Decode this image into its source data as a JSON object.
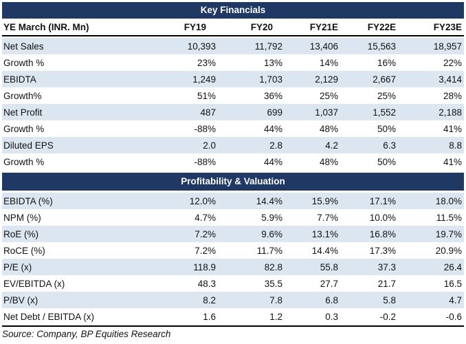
{
  "page": {
    "source_note": "Source: Company, BP Equities Research"
  },
  "table": {
    "section1_title": "Key Financials",
    "section2_title": "Profitability & Valuation",
    "columns": [
      "YE March (INR. Mn)",
      "FY19",
      "FY20",
      "FY21E",
      "FY22E",
      "FY23E"
    ],
    "section1_rows": [
      {
        "label": "Net Sales",
        "values": [
          "10,393",
          "11,792",
          "13,406",
          "15,563",
          "18,957"
        ]
      },
      {
        "label": "Growth %",
        "values": [
          "23%",
          "13%",
          "14%",
          "16%",
          "22%"
        ]
      },
      {
        "label": "EBIDTA",
        "values": [
          "1,249",
          "1,703",
          "2,129",
          "2,667",
          "3,414"
        ]
      },
      {
        "label": "Growth%",
        "values": [
          "51%",
          "36%",
          "25%",
          "25%",
          "28%"
        ]
      },
      {
        "label": "Net Profit",
        "values": [
          "487",
          "699",
          "1,037",
          "1,552",
          "2,188"
        ]
      },
      {
        "label": "Growth %",
        "values": [
          "-88%",
          "44%",
          "48%",
          "50%",
          "41%"
        ]
      },
      {
        "label": "Diluted EPS",
        "values": [
          "2.0",
          "2.8",
          "4.2",
          "6.3",
          "8.8"
        ]
      },
      {
        "label": "Growth %",
        "values": [
          "-88%",
          "44%",
          "48%",
          "50%",
          "41%"
        ]
      }
    ],
    "section2_rows": [
      {
        "label": "EBIDTA (%)",
        "values": [
          "12.0%",
          "14.4%",
          "15.9%",
          "17.1%",
          "18.0%"
        ]
      },
      {
        "label": "NPM (%)",
        "values": [
          "4.7%",
          "5.9%",
          "7.7%",
          "10.0%",
          "11.5%"
        ]
      },
      {
        "label": "RoE (%)",
        "values": [
          "7.2%",
          "9.6%",
          "13.1%",
          "16.8%",
          "19.7%"
        ]
      },
      {
        "label": "RoCE (%)",
        "values": [
          "7.2%",
          "11.7%",
          "14.4%",
          "17.3%",
          "20.9%"
        ]
      },
      {
        "label": "P/E (x)",
        "values": [
          "118.9",
          "82.8",
          "55.8",
          "37.3",
          "26.4"
        ]
      },
      {
        "label": "EV/EBITDA (x)",
        "values": [
          "48.3",
          "35.5",
          "27.7",
          "21.7",
          "16.5"
        ]
      },
      {
        "label": "P/BV (x)",
        "values": [
          "8.2",
          "7.8",
          "6.8",
          "5.8",
          "4.7"
        ]
      },
      {
        "label": "Net Debt / EBITDA (x)",
        "values": [
          "1.6",
          "1.2",
          "0.3",
          "-0.2",
          "-0.6"
        ]
      }
    ]
  },
  "colors": {
    "section_header_bg": "#1f3864",
    "alt_row_bg": "#dce6f1",
    "text": "#111111"
  }
}
